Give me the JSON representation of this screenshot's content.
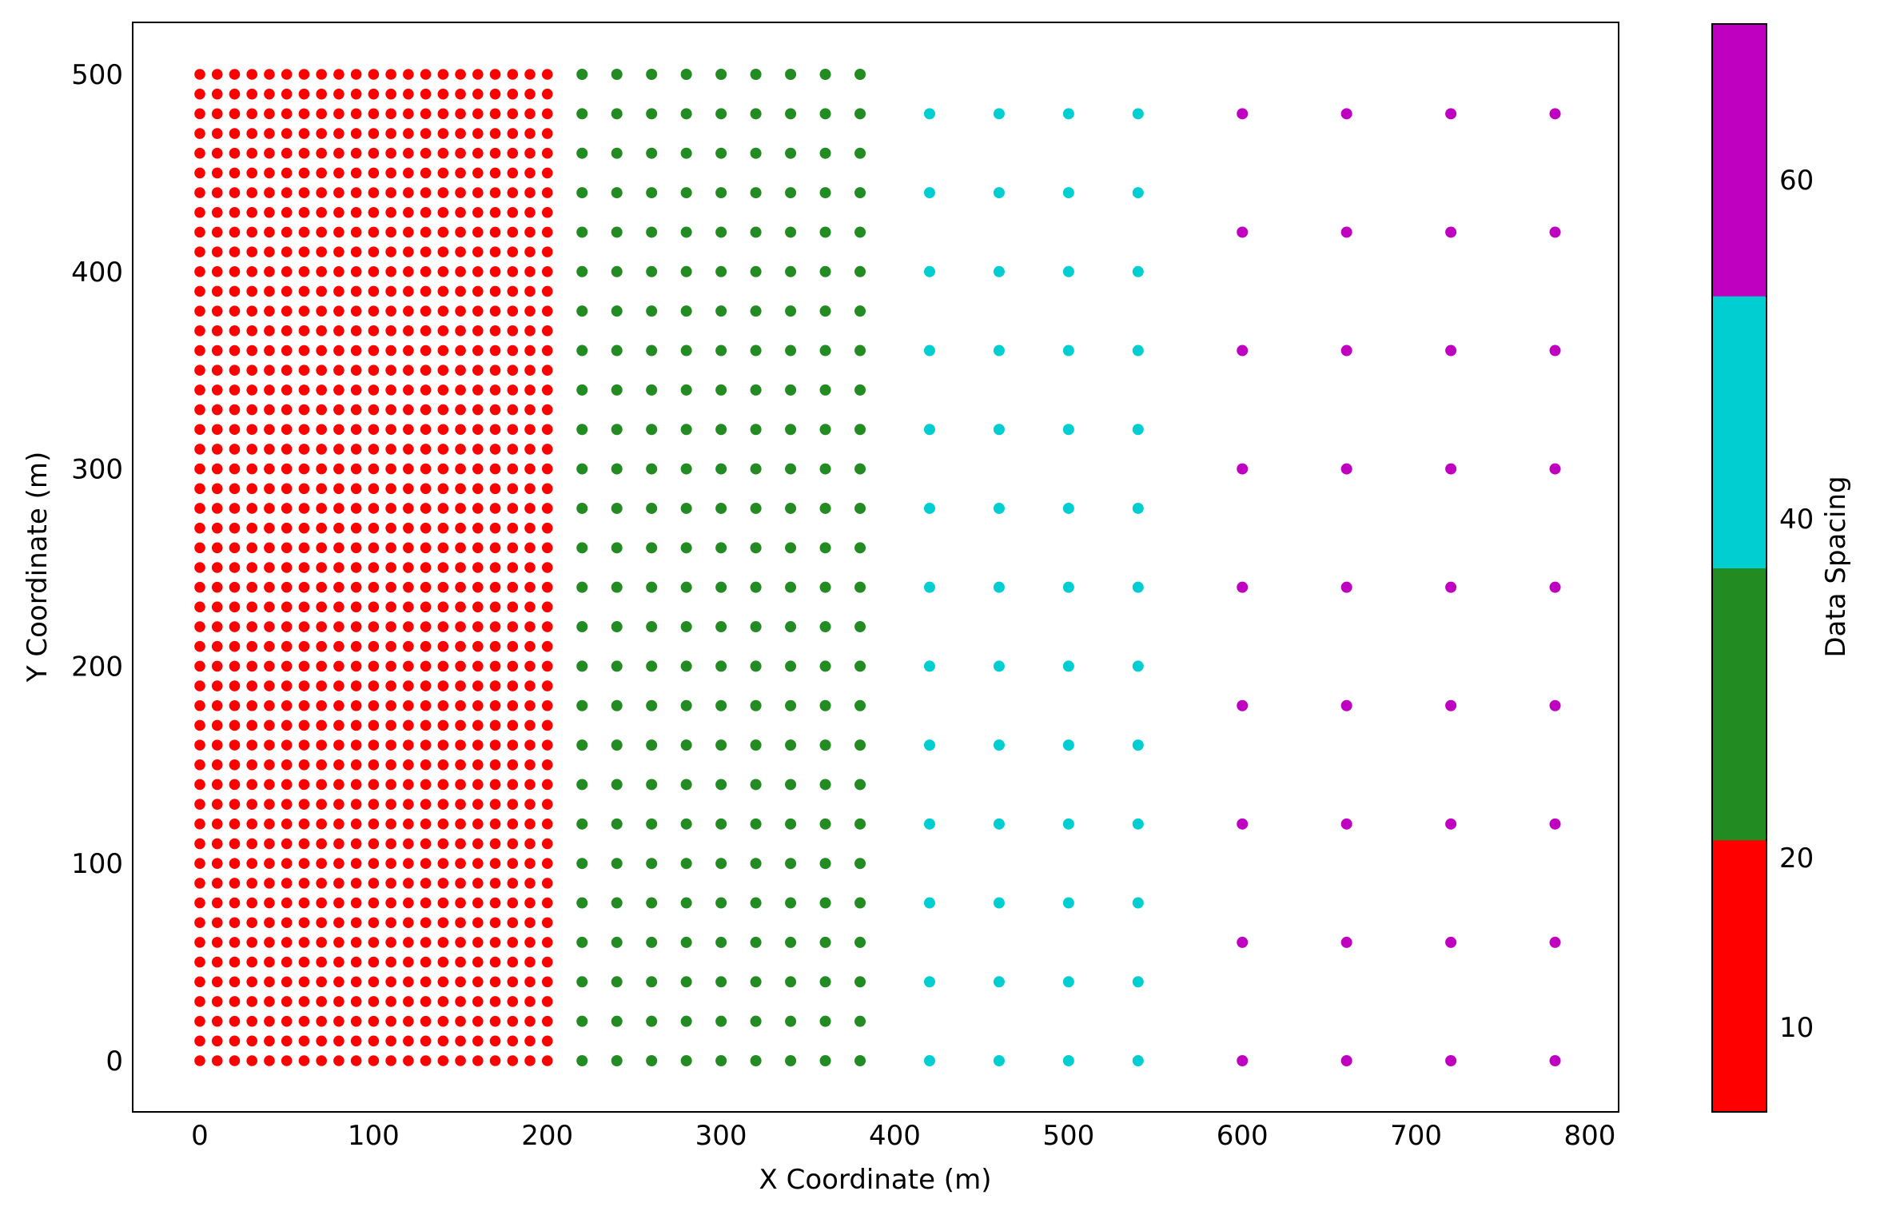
{
  "chart_data": {
    "type": "scatter",
    "xlabel": "X Coordinate (m)",
    "ylabel": "Y Coordinate (m)",
    "xlim": [
      -40,
      820
    ],
    "ylim": [
      -25,
      525
    ],
    "xticks": [
      "0",
      "100",
      "200",
      "300",
      "400",
      "500",
      "600",
      "700",
      "800"
    ],
    "yticks": [
      "0",
      "100",
      "200",
      "300",
      "400",
      "500"
    ],
    "series": [
      {
        "spacing": 10,
        "color": "#ff0000",
        "x_start": 0,
        "x_end": 200,
        "y_start": 0,
        "y_end": 500
      },
      {
        "spacing": 20,
        "color": "#228b22",
        "x_start": 220,
        "x_end": 380,
        "y_start": 0,
        "y_end": 500
      },
      {
        "spacing": 40,
        "color": "#00ced1",
        "x_start": 420,
        "x_end": 540,
        "y_start": 0,
        "y_end": 480
      },
      {
        "spacing": 60,
        "color": "#c000c0",
        "x_start": 600,
        "x_end": 780,
        "y_start": 0,
        "y_end": 480
      }
    ],
    "colorbar": {
      "label": "Data Spacing",
      "ticks": [
        "10",
        "20",
        "40",
        "60"
      ],
      "colors": [
        "#ff0000",
        "#228b22",
        "#00ced1",
        "#c000c0"
      ]
    },
    "grid": false,
    "legend": "none"
  }
}
